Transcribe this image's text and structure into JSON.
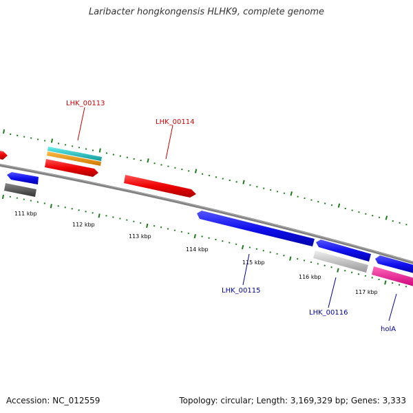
{
  "title": "Laribacter hongkongensis HLHK9, complete genome",
  "footer": {
    "accession": "Accession: NC_012559",
    "topology": "Topology: circular; Length: 3,169,329 bp; Genes: 3,333"
  },
  "ruler": {
    "labels": [
      "111 kbp",
      "112 kbp",
      "113 kbp",
      "114 kbp",
      "115 kbp",
      "116 kbp",
      "117 kbp"
    ]
  },
  "genes": [
    {
      "name": "LHK_00113",
      "color": "#cc0000"
    },
    {
      "name": "LHK_00114",
      "color": "#cc0000"
    },
    {
      "name": "LHK_00115",
      "color": "#000099"
    },
    {
      "name": "LHK_00116",
      "color": "#000099"
    },
    {
      "name": "holA",
      "color": "#000099"
    }
  ],
  "colors": {
    "backbone": "#808080",
    "tick": "#1a7a1a",
    "forward_gene": "#ee0000",
    "reverse_gene": "#1010ee",
    "cyan_feature": "#22cccc",
    "orange_feature": "#ff9900",
    "gray_feature_dark": "#555555",
    "gray_feature_light": "#bbbbbb",
    "pink_feature": "#ff1493"
  }
}
